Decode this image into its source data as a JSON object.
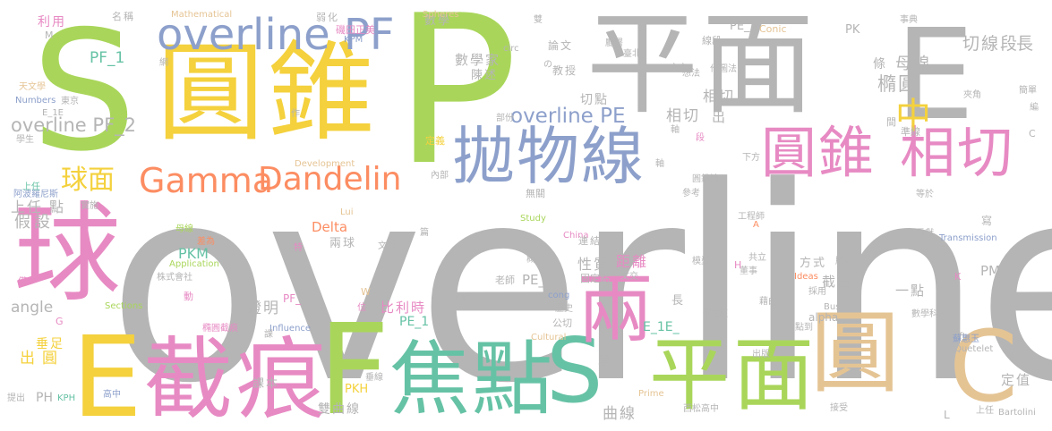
{
  "palette": {
    "gray": "#b5b5b5",
    "yellow": "#f4d13d",
    "green": "#a9d65a",
    "pink": "#e78ac3",
    "blue": "#8da0cb",
    "teal": "#66c2a5",
    "orange": "#fc8d62",
    "tan": "#e5c494"
  },
  "words": [
    {
      "t": "overline",
      "c": "gray"
    },
    {
      "t": "S",
      "c": "green"
    },
    {
      "t": "P",
      "c": "green"
    },
    {
      "t": "平面",
      "c": "gray"
    },
    {
      "t": "E",
      "c": "gray"
    },
    {
      "t": "圓錐",
      "c": "yellow"
    },
    {
      "t": "球",
      "c": "pink"
    },
    {
      "t": "E",
      "c": "yellow"
    },
    {
      "t": "截痕",
      "c": "pink"
    },
    {
      "t": "F",
      "c": "green"
    },
    {
      "t": "焦點",
      "c": "teal"
    },
    {
      "t": "S",
      "c": "teal"
    },
    {
      "t": "平面",
      "c": "green"
    },
    {
      "t": "圓",
      "c": "tan"
    },
    {
      "t": "C",
      "c": "tan"
    },
    {
      "t": "兩",
      "c": "pink"
    },
    {
      "t": "拋物線",
      "c": "blue"
    },
    {
      "t": "overline PF",
      "c": "blue"
    },
    {
      "t": "圓錐",
      "c": "pink"
    },
    {
      "t": "相切",
      "c": "pink"
    },
    {
      "t": "Gamma",
      "c": "orange"
    },
    {
      "t": "Dandelin",
      "c": "orange"
    },
    {
      "t": "球面",
      "c": "yellow"
    },
    {
      "t": "中",
      "c": "yellow"
    },
    {
      "t": "overline PF_2",
      "c": "gray"
    },
    {
      "t": "overline PE",
      "c": "blue"
    },
    {
      "t": "切線段",
      "c": "gray"
    },
    {
      "t": "長",
      "c": "gray"
    },
    {
      "t": "條",
      "c": "gray"
    },
    {
      "t": "母線",
      "c": "gray"
    },
    {
      "t": "橢圓",
      "c": "gray"
    },
    {
      "t": "PF_1",
      "c": "teal"
    },
    {
      "t": "相切",
      "c": "gray"
    },
    {
      "t": "相切",
      "c": "gray"
    },
    {
      "t": "出",
      "c": "gray"
    },
    {
      "t": "Delta",
      "c": "orange"
    },
    {
      "t": "上任",
      "c": "gray"
    },
    {
      "t": "點",
      "c": "gray"
    },
    {
      "t": "假設",
      "c": "gray"
    },
    {
      "t": "angle",
      "c": "gray"
    },
    {
      "t": "出",
      "c": "yellow"
    },
    {
      "t": "圓",
      "c": "yellow"
    },
    {
      "t": "垂足",
      "c": "yellow"
    },
    {
      "t": "PH",
      "c": "gray"
    },
    {
      "t": "證明",
      "c": "gray"
    },
    {
      "t": "PKM",
      "c": "teal"
    },
    {
      "t": "兩球",
      "c": "gray"
    },
    {
      "t": "比利時",
      "c": "pink"
    },
    {
      "t": "PE_2",
      "c": "gray"
    },
    {
      "t": "PE_1",
      "c": "teal"
    },
    {
      "t": "雙曲線",
      "c": "gray"
    },
    {
      "t": "性質",
      "c": "gray"
    },
    {
      "t": "距離",
      "c": "pink"
    },
    {
      "t": "一點",
      "c": "gray"
    },
    {
      "t": "截出",
      "c": "gray"
    },
    {
      "t": "方式",
      "c": "gray"
    },
    {
      "t": "PM",
      "c": "gray"
    },
    {
      "t": "定值",
      "c": "gray"
    },
    {
      "t": "曲線",
      "c": "gray"
    },
    {
      "t": "單元",
      "c": "gray"
    },
    {
      "t": "E_1E_",
      "c": "teal"
    },
    {
      "t": "說",
      "c": "gray"
    },
    {
      "t": "長",
      "c": "gray"
    },
    {
      "t": "PKH",
      "c": "yellow"
    },
    {
      "t": "課本",
      "c": "gray"
    },
    {
      "t": "切點",
      "c": "gray"
    },
    {
      "t": "教授",
      "c": "gray"
    },
    {
      "t": "數學家",
      "c": "gray"
    },
    {
      "t": "陳述",
      "c": "gray"
    },
    {
      "t": "論文",
      "c": "gray"
    },
    {
      "t": "數學",
      "c": "gray"
    },
    {
      "t": "PE_",
      "c": "gray"
    },
    {
      "t": "PK",
      "c": "gray"
    },
    {
      "t": "Mathematical",
      "c": "tan"
    },
    {
      "t": "Spheres",
      "c": "tan"
    },
    {
      "t": "Conic",
      "c": "tan"
    },
    {
      "t": "Development",
      "c": "tan"
    },
    {
      "t": "Application",
      "c": "green"
    },
    {
      "t": "Sections",
      "c": "green"
    },
    {
      "t": "Influence",
      "c": "blue"
    },
    {
      "t": "Cultural",
      "c": "tan"
    },
    {
      "t": "Prime",
      "c": "tan"
    },
    {
      "t": "Study",
      "c": "green"
    },
    {
      "t": "China",
      "c": "pink"
    },
    {
      "t": "Transmission",
      "c": "blue"
    },
    {
      "t": "Ideas",
      "c": "orange"
    },
    {
      "t": "Quetelet",
      "c": "gray"
    },
    {
      "t": "Bartolini",
      "c": "gray"
    },
    {
      "t": "Bussi",
      "c": "gray"
    },
    {
      "t": "Numbers",
      "c": "blue"
    },
    {
      "t": "Lui",
      "c": "tan"
    },
    {
      "t": "circ",
      "c": "gray"
    },
    {
      "t": "left",
      "c": "gray"
    },
    {
      "t": "alpha",
      "c": "gray"
    },
    {
      "t": "cong",
      "c": "blue"
    },
    {
      "t": "利用",
      "c": "pink"
    },
    {
      "t": "名稱",
      "c": "gray"
    },
    {
      "t": "弱化",
      "c": "gray"
    },
    {
      "t": "磯田正美",
      "c": "pink"
    },
    {
      "t": "KPM",
      "c": "blue"
    },
    {
      "t": "天文學",
      "c": "tan"
    },
    {
      "t": "東京",
      "c": "gray"
    },
    {
      "t": "E_1E",
      "c": "gray"
    },
    {
      "t": "學生",
      "c": "gray"
    },
    {
      "t": "阿波羅尼斯",
      "c": "blue"
    },
    {
      "t": "實施",
      "c": "gray"
    },
    {
      "t": "定義",
      "c": "yellow"
    },
    {
      "t": "內部",
      "c": "gray"
    },
    {
      "t": "無關",
      "c": "gray"
    },
    {
      "t": "連結",
      "c": "gray"
    },
    {
      "t": "老師",
      "c": "gray"
    },
    {
      "t": "固定點",
      "c": "gray"
    },
    {
      "t": "公切",
      "c": "gray"
    },
    {
      "t": "歷史",
      "c": "gray"
    },
    {
      "t": "教師",
      "c": "gray"
    },
    {
      "t": "文交",
      "c": "gray"
    },
    {
      "t": "株式會社",
      "c": "gray"
    },
    {
      "t": "橢圓截痕",
      "c": "pink"
    },
    {
      "t": "高中",
      "c": "blue"
    },
    {
      "t": "提出",
      "c": "gray"
    },
    {
      "t": "KPH",
      "c": "teal"
    },
    {
      "t": "西松高中",
      "c": "gray"
    },
    {
      "t": "上任",
      "c": "gray"
    },
    {
      "t": "蘇惠玉",
      "c": "blue"
    },
    {
      "t": "數學科",
      "c": "gray"
    },
    {
      "t": "點到",
      "c": "gray"
    },
    {
      "t": "貢獻",
      "c": "gray"
    },
    {
      "t": "工程師",
      "c": "gray"
    },
    {
      "t": "共立",
      "c": "gray"
    },
    {
      "t": "董事",
      "c": "gray"
    },
    {
      "t": "藉由",
      "c": "gray"
    },
    {
      "t": "採用",
      "c": "gray"
    },
    {
      "t": "版本",
      "c": "gray"
    },
    {
      "t": "形式",
      "c": "gray"
    },
    {
      "t": "模型",
      "c": "gray"
    },
    {
      "t": "參考",
      "c": "gray"
    },
    {
      "t": "等於",
      "c": "gray"
    },
    {
      "t": "夾角",
      "c": "gray"
    },
    {
      "t": "簡單",
      "c": "gray"
    },
    {
      "t": "準線",
      "c": "gray"
    },
    {
      "t": "下方",
      "c": "gray"
    },
    {
      "t": "圓錐論",
      "c": "gray"
    },
    {
      "t": "想法",
      "c": "gray"
    },
    {
      "t": "作圖法",
      "c": "gray"
    },
    {
      "t": "市立",
      "c": "gray"
    },
    {
      "t": "臺北",
      "c": "gray"
    },
    {
      "t": "廳署",
      "c": "gray"
    },
    {
      "t": "線段",
      "c": "gray"
    },
    {
      "t": "事典",
      "c": "gray"
    },
    {
      "t": "雙",
      "c": "gray"
    },
    {
      "t": "概念",
      "c": "gray"
    },
    {
      "t": "文獻",
      "c": "gray"
    },
    {
      "t": "差為",
      "c": "orange"
    },
    {
      "t": "母線",
      "c": "green"
    },
    {
      "t": "垂線",
      "c": "gray"
    },
    {
      "t": "出版",
      "c": "gray"
    },
    {
      "t": "接受",
      "c": "gray"
    },
    {
      "t": "間",
      "c": "gray"
    },
    {
      "t": "寫",
      "c": "gray"
    },
    {
      "t": "作",
      "c": "gray"
    },
    {
      "t": "編",
      "c": "gray"
    },
    {
      "t": "部份",
      "c": "gray"
    },
    {
      "t": "篇",
      "c": "gray"
    },
    {
      "t": "動",
      "c": "pink"
    },
    {
      "t": "特",
      "c": "pink"
    },
    {
      "t": "位",
      "c": "pink"
    },
    {
      "t": "課",
      "c": "gray"
    },
    {
      "t": "段",
      "c": "pink"
    },
    {
      "t": "軸",
      "c": "gray"
    },
    {
      "t": "網",
      "c": "gray"
    },
    {
      "t": "の",
      "c": "gray"
    },
    {
      "t": "僅",
      "c": "pink"
    },
    {
      "t": "M",
      "c": "gray"
    },
    {
      "t": "G",
      "c": "pink"
    },
    {
      "t": "W",
      "c": "tan"
    },
    {
      "t": "K",
      "c": "pink"
    },
    {
      "t": "L",
      "c": "gray"
    },
    {
      "t": "A",
      "c": "orange"
    },
    {
      "t": "C",
      "c": "gray"
    },
    {
      "t": "H",
      "c": "pink"
    },
    {
      "t": "S_",
      "c": "gray"
    },
    {
      "t": "PF_",
      "c": "pink"
    },
    {
      "t": "上任",
      "c": "teal"
    },
    {
      "t": "軸",
      "c": "gray"
    }
  ]
}
